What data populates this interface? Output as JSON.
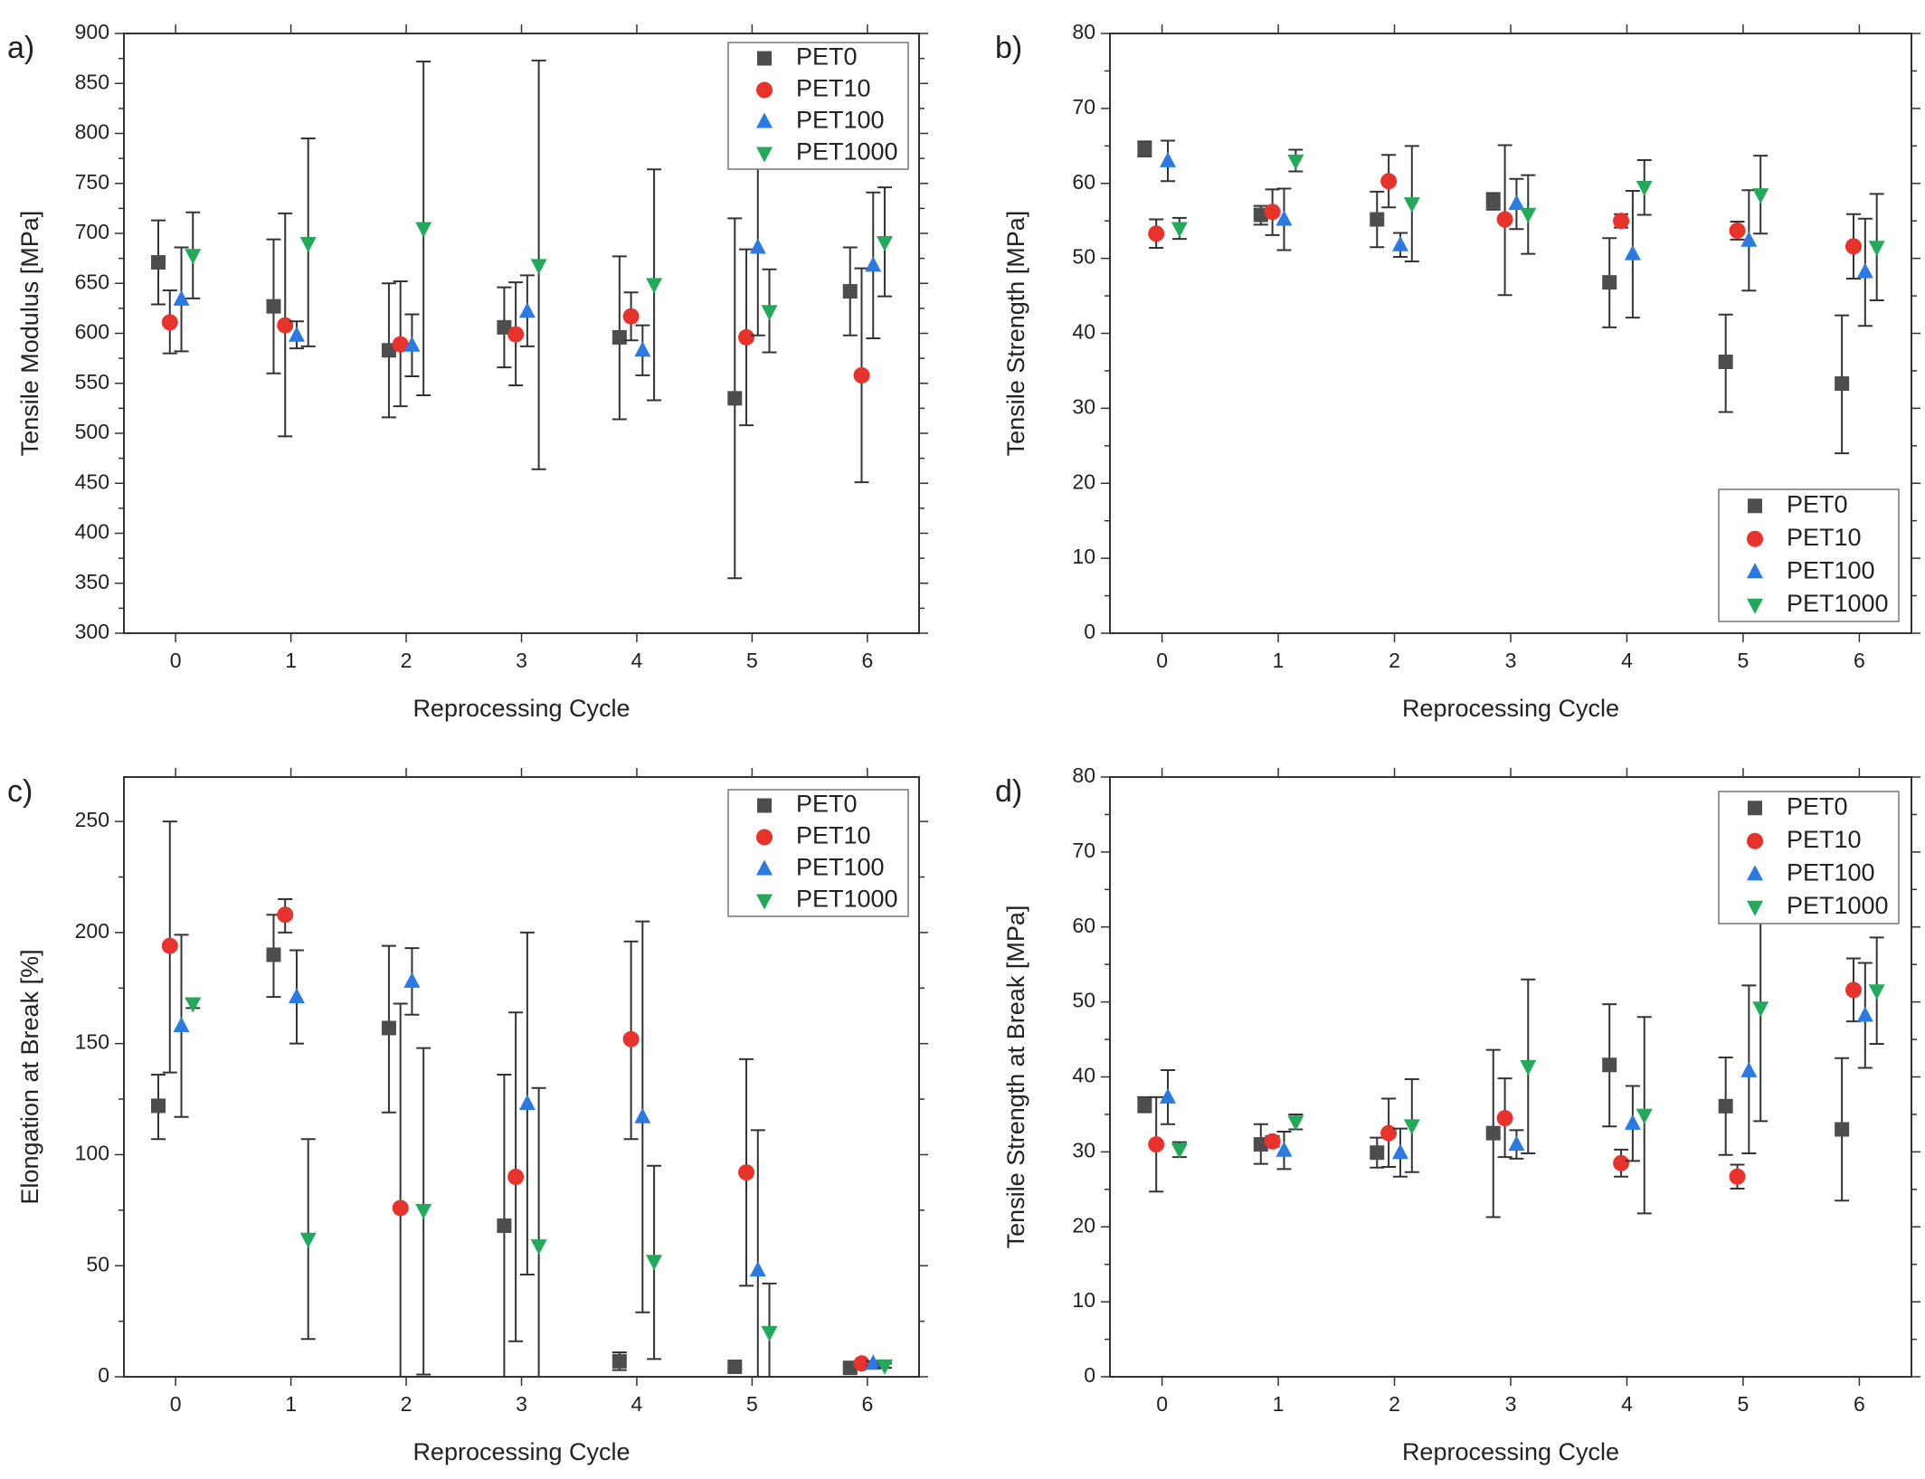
{
  "series_style": [
    {
      "name": "PET0",
      "color": "#4d4d4d",
      "marker": "square"
    },
    {
      "name": "PET10",
      "color": "#e8332c",
      "marker": "circle"
    },
    {
      "name": "PET100",
      "color": "#2a7ae2",
      "marker": "triangle-up"
    },
    {
      "name": "PET1000",
      "color": "#22aa5a",
      "marker": "triangle-down"
    }
  ],
  "chart_data": [
    {
      "type": "scatter",
      "panel_label": "a)",
      "xlabel": "Reprocessing Cycle",
      "ylabel": "Tensile Modulus [MPa]",
      "categories": [
        "0",
        "1",
        "2",
        "3",
        "4",
        "5",
        "6"
      ],
      "ylim": [
        300,
        900
      ],
      "yticks": [
        300,
        350,
        400,
        450,
        500,
        550,
        600,
        650,
        700,
        750,
        800,
        850,
        900
      ],
      "grid": false,
      "legend_position": "top-right",
      "error_bars": true,
      "series": [
        {
          "name": "PET0",
          "values": [
            671,
            627,
            583,
            606,
            596,
            535,
            642
          ],
          "err_low": [
            629,
            560,
            516,
            566,
            514,
            355,
            598
          ],
          "err_high": [
            713,
            694,
            650,
            646,
            677,
            715,
            686
          ]
        },
        {
          "name": "PET10",
          "values": [
            611,
            608,
            589,
            599,
            617,
            596,
            558
          ],
          "err_low": [
            580,
            497,
            527,
            548,
            593,
            508,
            451
          ],
          "err_high": [
            643,
            720,
            652,
            651,
            641,
            684,
            665
          ]
        },
        {
          "name": "PET100",
          "values": [
            634,
            598,
            588,
            622,
            583,
            686,
            668
          ],
          "err_low": [
            582,
            585,
            557,
            587,
            558,
            598,
            595
          ],
          "err_high": [
            686,
            612,
            619,
            658,
            608,
            774,
            741
          ]
        },
        {
          "name": "PET1000",
          "values": [
            678,
            690,
            705,
            668,
            649,
            622,
            691
          ],
          "err_low": [
            635,
            587,
            538,
            464,
            533,
            581,
            637
          ],
          "err_high": [
            721,
            795,
            872,
            873,
            764,
            664,
            746
          ]
        }
      ]
    },
    {
      "type": "scatter",
      "panel_label": "b)",
      "xlabel": "Reprocessing Cycle",
      "ylabel": "Tensile Strength [MPa]",
      "categories": [
        "0",
        "1",
        "2",
        "3",
        "4",
        "5",
        "6"
      ],
      "ylim": [
        0,
        80
      ],
      "yticks": [
        0,
        10,
        20,
        30,
        40,
        50,
        60,
        70,
        80
      ],
      "grid": false,
      "legend_position": "bottom-right",
      "error_bars": true,
      "series": [
        {
          "name": "PET0",
          "values": [
            64.6,
            55.8,
            55.2,
            57.6,
            46.8,
            36.2,
            33.3
          ],
          "err_low": [
            63.6,
            54.5,
            51.5,
            56.5,
            40.8,
            29.5,
            24.0
          ],
          "err_high": [
            65.6,
            57.0,
            58.9,
            58.7,
            52.7,
            42.5,
            42.4
          ]
        },
        {
          "name": "PET10",
          "values": [
            53.3,
            56.2,
            60.3,
            55.2,
            55.0,
            53.7,
            51.6
          ],
          "err_low": [
            51.4,
            53.1,
            56.8,
            45.1,
            54.1,
            52.5,
            47.3
          ],
          "err_high": [
            55.2,
            59.2,
            63.8,
            65.1,
            55.9,
            54.9,
            55.9
          ]
        },
        {
          "name": "PET100",
          "values": [
            63.0,
            55.2,
            51.8,
            57.3,
            50.6,
            52.4,
            48.2
          ],
          "err_low": [
            60.3,
            51.1,
            50.2,
            53.9,
            42.1,
            45.7,
            41.0
          ],
          "err_high": [
            65.7,
            59.3,
            53.4,
            60.6,
            59.0,
            59.1,
            55.3
          ]
        },
        {
          "name": "PET1000",
          "values": [
            54.0,
            63.0,
            57.3,
            55.9,
            59.5,
            58.5,
            51.5
          ],
          "err_low": [
            52.6,
            61.6,
            49.6,
            50.6,
            55.8,
            53.3,
            44.4
          ],
          "err_high": [
            55.4,
            64.5,
            65.0,
            61.1,
            63.1,
            63.7,
            58.6
          ]
        }
      ]
    },
    {
      "type": "scatter",
      "panel_label": "c)",
      "xlabel": "Reprocessing Cycle",
      "ylabel": "Elongation at Break [%]",
      "categories": [
        "0",
        "1",
        "2",
        "3",
        "4",
        "5",
        "6"
      ],
      "ylim": [
        0,
        270
      ],
      "yticks": [
        0,
        50,
        100,
        150,
        200,
        250
      ],
      "grid": false,
      "legend_position": "top-right",
      "error_bars": true,
      "series": [
        {
          "name": "PET0",
          "values": [
            122,
            190,
            157,
            68,
            7,
            4.5,
            4
          ],
          "err_low": [
            107,
            171,
            119,
            0,
            3,
            3.5,
            2
          ],
          "err_high": [
            136,
            208,
            194,
            136,
            11,
            5.5,
            6
          ]
        },
        {
          "name": "PET10",
          "values": [
            194,
            208,
            76,
            90,
            152,
            92,
            6
          ],
          "err_low": [
            137,
            200,
            0,
            16,
            107,
            41,
            5
          ],
          "err_high": [
            250,
            215,
            168,
            164,
            196,
            143,
            7
          ]
        },
        {
          "name": "PET100",
          "values": [
            158,
            171,
            178,
            123,
            117,
            48,
            6
          ],
          "err_low": [
            117,
            150,
            163,
            46,
            29,
            0,
            5
          ],
          "err_high": [
            199,
            192,
            193,
            200,
            205,
            111,
            7
          ]
        },
        {
          "name": "PET1000",
          "values": [
            168,
            62,
            75,
            59,
            52,
            20,
            5
          ],
          "err_low": [
            166,
            17,
            1,
            0,
            8,
            0,
            4
          ],
          "err_high": [
            170,
            107,
            148,
            130,
            95,
            42,
            6
          ]
        }
      ]
    },
    {
      "type": "scatter",
      "panel_label": "d)",
      "xlabel": "Reprocessing Cycle",
      "ylabel": "Tensile Strength at Break [MPa]",
      "categories": [
        "0",
        "1",
        "2",
        "3",
        "4",
        "5",
        "6"
      ],
      "ylim": [
        0,
        80
      ],
      "yticks": [
        0,
        10,
        20,
        30,
        40,
        50,
        60,
        70,
        80
      ],
      "grid": false,
      "legend_position": "top-right",
      "error_bars": true,
      "series": [
        {
          "name": "PET0",
          "values": [
            36.3,
            31.0,
            29.9,
            32.5,
            41.6,
            36.1,
            33.0
          ],
          "err_low": [
            35.3,
            28.4,
            27.9,
            21.3,
            33.4,
            29.6,
            23.5
          ],
          "err_high": [
            37.3,
            33.7,
            31.9,
            43.6,
            49.7,
            42.6,
            42.5
          ]
        },
        {
          "name": "PET10",
          "values": [
            31.0,
            31.4,
            32.5,
            34.5,
            28.5,
            26.7,
            51.6
          ],
          "err_low": [
            24.7,
            30.7,
            28.0,
            29.3,
            26.7,
            25.1,
            47.4
          ],
          "err_high": [
            37.3,
            32.1,
            37.1,
            39.8,
            30.3,
            28.3,
            55.8
          ]
        },
        {
          "name": "PET100",
          "values": [
            37.3,
            30.2,
            29.9,
            31.0,
            33.8,
            40.8,
            48.2
          ],
          "err_low": [
            33.7,
            27.7,
            26.7,
            29.1,
            28.8,
            29.8,
            41.2
          ],
          "err_high": [
            40.9,
            32.7,
            33.1,
            32.9,
            38.8,
            52.2,
            55.2
          ]
        },
        {
          "name": "PET1000",
          "values": [
            30.3,
            34.0,
            33.5,
            41.4,
            34.9,
            49.2,
            51.5
          ],
          "err_low": [
            29.3,
            33.0,
            27.3,
            29.8,
            21.8,
            34.1,
            44.4
          ],
          "err_high": [
            31.3,
            35.0,
            39.7,
            53.0,
            48.0,
            64.3,
            58.6
          ]
        }
      ]
    }
  ]
}
